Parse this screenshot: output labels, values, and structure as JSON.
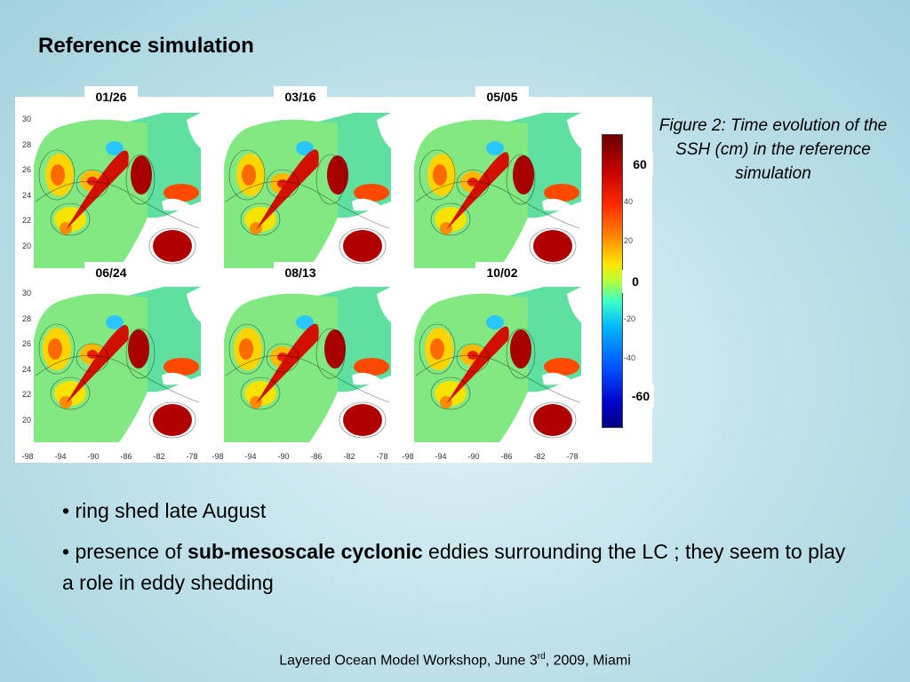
{
  "slide": {
    "title": "Reference simulation"
  },
  "figure": {
    "panels": [
      {
        "date": "01/26"
      },
      {
        "date": "03/16"
      },
      {
        "date": "05/05"
      },
      {
        "date": "06/24"
      },
      {
        "date": "08/13"
      },
      {
        "date": "10/02"
      }
    ],
    "y_ticks": [
      "30",
      "28",
      "26",
      "24",
      "22",
      "20"
    ],
    "x_ticks": [
      "-98",
      "-94",
      "-90",
      "-86",
      "-82",
      "-78"
    ],
    "colorbar": {
      "ticks": [
        "40",
        "20",
        "-20",
        "-40"
      ],
      "labels": {
        "top": "60",
        "mid": "0",
        "bottom": "-60"
      }
    },
    "caption": "Figure 2: Time evolution of the SSH (cm) in the reference simulation"
  },
  "bullets": {
    "b1": "• ring shed late August",
    "b2_pre": "• presence of ",
    "b2_bold": "sub-mesoscale cyclonic",
    "b2_post": " eddies surrounding the LC ; they seem to play a role in eddy shedding"
  },
  "footer": {
    "pre": "Layered Ocean Model Workshop, June 3",
    "sup": "rd",
    "post": ", 2009, Miami"
  }
}
